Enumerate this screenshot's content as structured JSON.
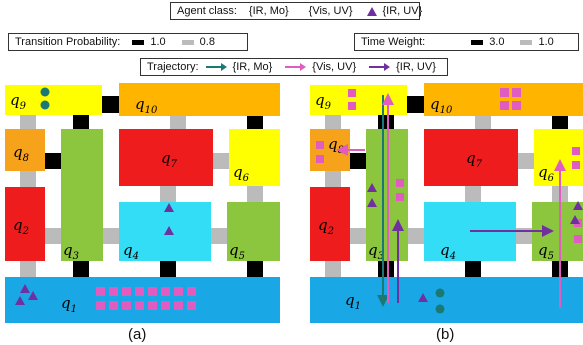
{
  "legend": {
    "agent_class": {
      "title": "Agent class:",
      "items": [
        {
          "label": "{IR, Mo}",
          "shape": "circle",
          "color": "#1a7a73"
        },
        {
          "label": "{Vis, UV}",
          "shape": "square",
          "color": "#e05cc0"
        },
        {
          "label": "{IR, UV}",
          "shape": "triangle",
          "color": "#7030a0"
        }
      ]
    },
    "transition_probability": {
      "title": "Transition Probability:",
      "items": [
        {
          "label": "1.0",
          "color": "#000000"
        },
        {
          "label": "0.8",
          "color": "#bbbbbb"
        }
      ]
    },
    "time_weight": {
      "title": "Time Weight:",
      "items": [
        {
          "label": "3.0",
          "color": "#000000"
        },
        {
          "label": "1.0",
          "color": "#bbbbbb"
        }
      ]
    },
    "trajectory": {
      "title": "Trajectory:",
      "items": [
        {
          "label": "{IR, Mo}",
          "color": "#1a7a73"
        },
        {
          "label": "{Vis, UV}",
          "color": "#e05cc0"
        },
        {
          "label": "{IR, UV}",
          "color": "#7030a0"
        }
      ]
    }
  },
  "regions": {
    "q1": {
      "label": "q",
      "sub": "1",
      "color": "#1aa7e6"
    },
    "q2": {
      "label": "q",
      "sub": "2",
      "color": "#ee1c1c"
    },
    "q3": {
      "label": "q",
      "sub": "3",
      "color": "#8cc63f"
    },
    "q4": {
      "label": "q",
      "sub": "4",
      "color": "#33ddf5"
    },
    "q5": {
      "label": "q",
      "sub": "5",
      "color": "#8cc63f"
    },
    "q6": {
      "label": "q",
      "sub": "6",
      "color": "#ffff00"
    },
    "q7": {
      "label": "q",
      "sub": "7",
      "color": "#ee1c1c"
    },
    "q8": {
      "label": "q",
      "sub": "8",
      "color": "#f7a21b"
    },
    "q9": {
      "label": "q",
      "sub": "9",
      "color": "#ffff00"
    },
    "q10": {
      "label": "q",
      "sub": "10",
      "color": "#ffb400"
    }
  },
  "panels": [
    {
      "caption": "(a)"
    },
    {
      "caption": "(b)"
    }
  ]
}
